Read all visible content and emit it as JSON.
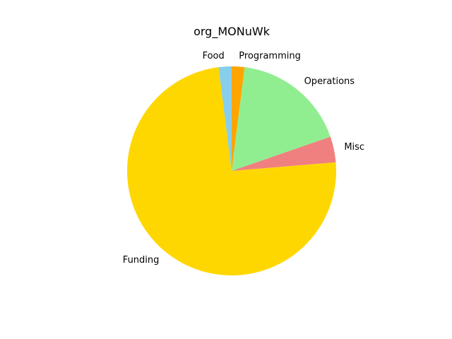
{
  "chart_data": {
    "type": "pie",
    "title": "org_MONuWk",
    "slices": [
      {
        "label": "Programming",
        "value": 2.0,
        "color": "#FFA500"
      },
      {
        "label": "Operations",
        "value": 17.7,
        "color": "#90EE90"
      },
      {
        "label": "Misc",
        "value": 4.0,
        "color": "#F08080"
      },
      {
        "label": "Funding",
        "value": 74.3,
        "color": "#FFD700"
      },
      {
        "label": "Food",
        "value": 2.0,
        "color": "#87CEEB"
      }
    ],
    "start_angle_deg": 90,
    "direction": "clockwise"
  }
}
